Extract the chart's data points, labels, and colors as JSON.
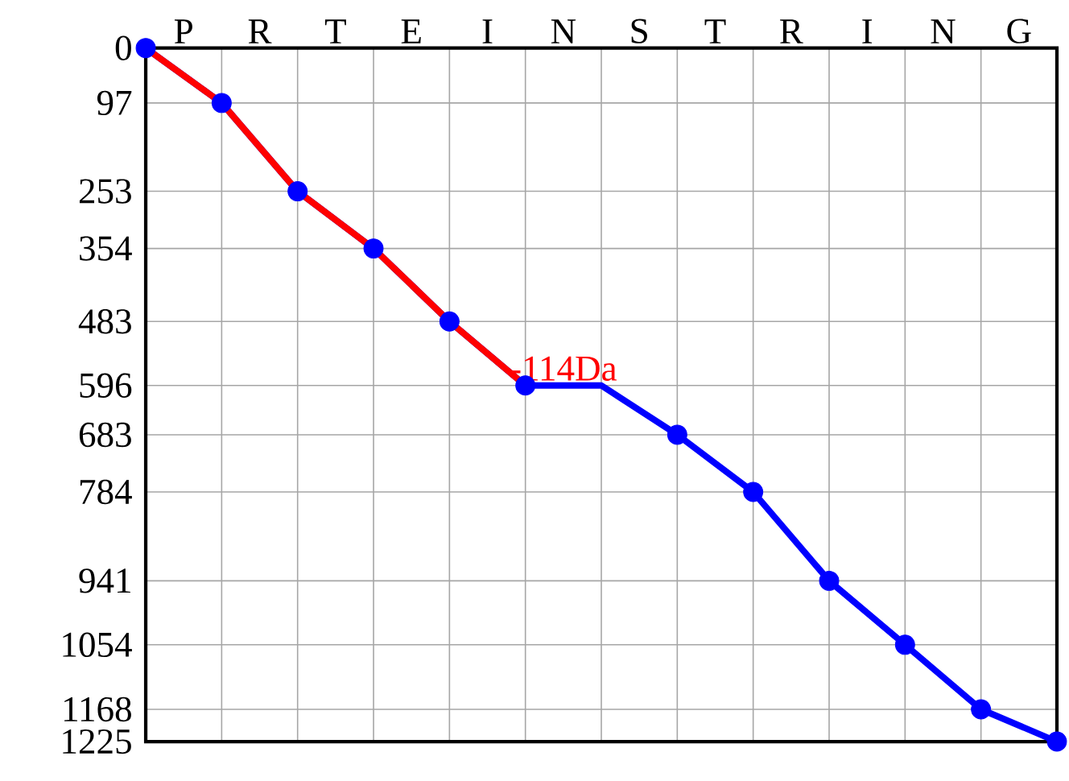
{
  "chart_data": {
    "type": "line",
    "ylim": [
      1225,
      0
    ],
    "categories": [
      null,
      null,
      null,
      null,
      null,
      null,
      null,
      null,
      null,
      null,
      null,
      null,
      null
    ],
    "yticks": [
      0,
      97,
      253,
      354,
      483,
      596,
      683,
      784,
      941,
      1054,
      1168,
      1225
    ],
    "grid": true,
    "series": [
      {
        "color": "#0000ff",
        "marker": "none",
        "values": [
          0,
          97,
          253,
          354,
          483,
          596,
          596,
          683,
          784,
          941,
          1054,
          1168,
          1225
        ]
      },
      {
        "color": "#ff0000",
        "marker": "none",
        "values": [
          0,
          97,
          253,
          354,
          483,
          596,
          null,
          null,
          null,
          null,
          null,
          null,
          null
        ]
      },
      {
        "type": "scatter",
        "color": "#0000ff",
        "marker": "circle",
        "values": [
          0,
          97,
          253,
          354,
          483,
          596,
          null,
          683,
          784,
          941,
          1054,
          1168,
          1225
        ]
      }
    ],
    "annotations": [
      "P",
      "R",
      "T",
      "E",
      "I",
      "N",
      "S",
      "T",
      "R",
      "I",
      "N",
      "G",
      {
        "text": "-114Da",
        "y": 596
      }
    ]
  }
}
